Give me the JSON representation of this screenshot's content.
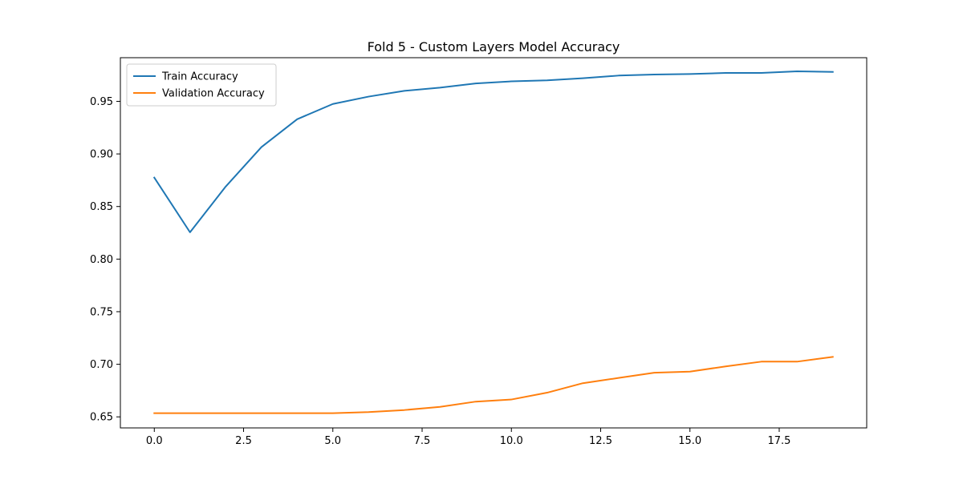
{
  "chart_data": {
    "type": "line",
    "title": "Fold 5 - Custom Layers Model Accuracy",
    "xlabel": "",
    "ylabel": "",
    "xlim": [
      -0.95,
      19.95
    ],
    "ylim": [
      0.6395,
      0.9915
    ],
    "x": [
      0,
      1,
      2,
      3,
      4,
      5,
      6,
      7,
      8,
      9,
      10,
      11,
      12,
      13,
      14,
      15,
      16,
      17,
      18,
      19
    ],
    "xticks": [
      0.0,
      2.5,
      5.0,
      7.5,
      10.0,
      12.5,
      15.0,
      17.5
    ],
    "xtick_labels": [
      "0.0",
      "2.5",
      "5.0",
      "7.5",
      "10.0",
      "12.5",
      "15.0",
      "17.5"
    ],
    "yticks": [
      0.65,
      0.7,
      0.75,
      0.8,
      0.85,
      0.9,
      0.95
    ],
    "ytick_labels": [
      "0.65",
      "0.70",
      "0.75",
      "0.80",
      "0.85",
      "0.90",
      "0.95"
    ],
    "grid": false,
    "legend_position": "upper-left",
    "series": [
      {
        "name": "Train Accuracy",
        "color": "#1f77b4",
        "values": [
          0.8775,
          0.8255,
          0.869,
          0.9065,
          0.933,
          0.9475,
          0.9545,
          0.96,
          0.963,
          0.967,
          0.969,
          0.97,
          0.972,
          0.9745,
          0.9755,
          0.976,
          0.977,
          0.977,
          0.9785,
          0.978
        ]
      },
      {
        "name": "Validation Accuracy",
        "color": "#ff7f0e",
        "values": [
          0.6535,
          0.6535,
          0.6535,
          0.6535,
          0.6535,
          0.6535,
          0.6545,
          0.6565,
          0.6595,
          0.6645,
          0.6665,
          0.673,
          0.682,
          0.687,
          0.692,
          0.693,
          0.698,
          0.7025,
          0.7025,
          0.707
        ]
      }
    ]
  }
}
